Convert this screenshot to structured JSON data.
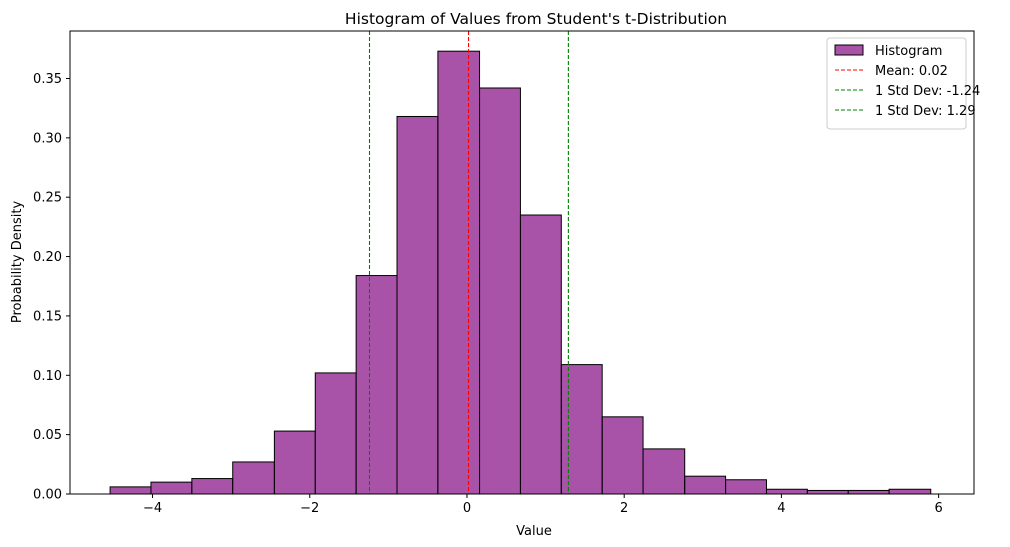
{
  "chart_data": {
    "type": "bar",
    "title": "Histogram of Values from Student's t-Distribution",
    "xlabel": "Value",
    "ylabel": "Probability Density",
    "xlim": [
      -5.05,
      6.45
    ],
    "ylim": [
      0,
      0.39
    ],
    "xticks": [
      -4,
      -2,
      0,
      2,
      4,
      6
    ],
    "xtick_labels": [
      "−4",
      "−2",
      "0",
      "2",
      "4",
      "6"
    ],
    "yticks": [
      0,
      0.05,
      0.1,
      0.15,
      0.2,
      0.25,
      0.3,
      0.35
    ],
    "ytick_labels": [
      "0.00",
      "0.05",
      "0.10",
      "0.15",
      "0.20",
      "0.25",
      "0.30",
      "0.35"
    ],
    "grid": false,
    "legend_position": "top-right",
    "bin_edges": [
      -4.54,
      -4.02,
      -3.5,
      -2.98,
      -2.45,
      -1.93,
      -1.41,
      -0.89,
      -0.37,
      0.16,
      0.68,
      1.2,
      1.72,
      2.24,
      2.77,
      3.29,
      3.81,
      4.33,
      4.85,
      5.37,
      5.9
    ],
    "series": [
      {
        "name": "Histogram",
        "color": "#8b1a8b",
        "edge_color": "#000000",
        "opacity": 0.75,
        "values": [
          0.006,
          0.01,
          0.013,
          0.027,
          0.053,
          0.102,
          0.184,
          0.318,
          0.373,
          0.342,
          0.235,
          0.109,
          0.065,
          0.038,
          0.015,
          0.012,
          0.004,
          0.003,
          0.003,
          0.004
        ]
      }
    ],
    "reference_lines": [
      {
        "name": "Mean: 0.02",
        "x": 0.02,
        "color": "#ff0000",
        "style": "dashed"
      },
      {
        "name": "1 Std Dev: -1.24",
        "x": -1.24,
        "color": "#008000",
        "style": "dashed"
      },
      {
        "name": "1 Std Dev: 1.29",
        "x": 1.29,
        "color": "#008000",
        "style": "dashed"
      }
    ]
  }
}
